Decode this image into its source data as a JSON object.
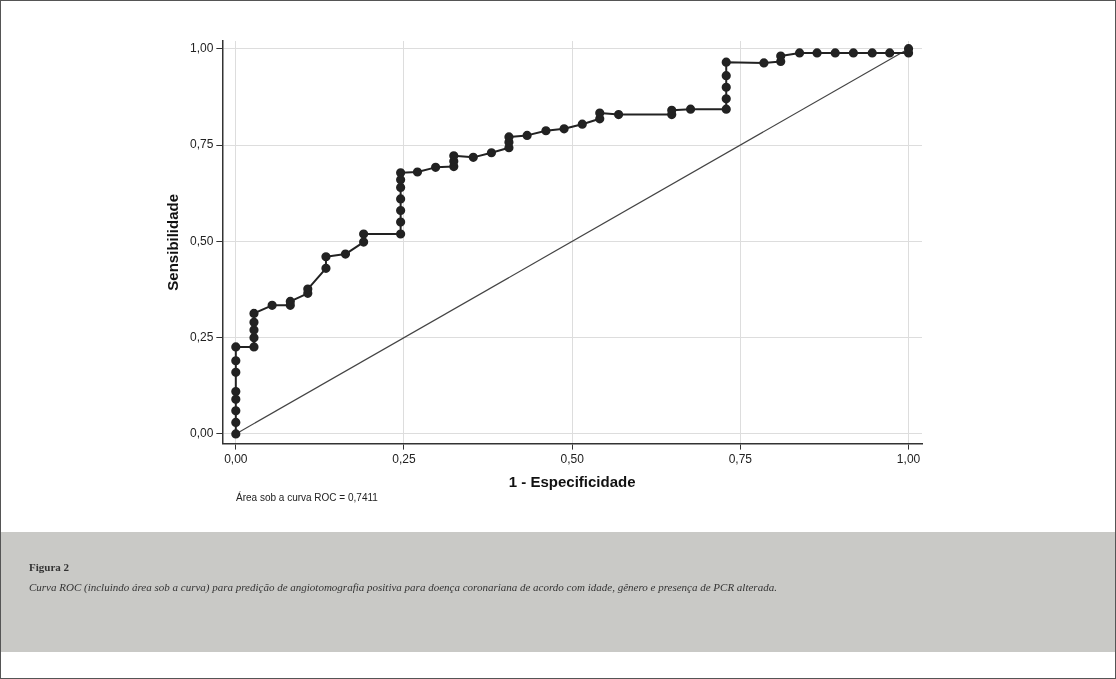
{
  "chart_data": {
    "type": "line",
    "xlabel": "1 - Especificidade",
    "ylabel": "Sensibilidade",
    "xlim": [
      -0.02,
      1.02
    ],
    "ylim": [
      -0.025,
      1.02
    ],
    "xticks": [
      {
        "value": 0,
        "label": "0,00"
      },
      {
        "value": 0.25,
        "label": "0,25"
      },
      {
        "value": 0.5,
        "label": "0,50"
      },
      {
        "value": 0.75,
        "label": "0,75"
      },
      {
        "value": 1,
        "label": "1,00"
      }
    ],
    "yticks": [
      {
        "value": 0,
        "label": "0,00"
      },
      {
        "value": 0.25,
        "label": "0,25"
      },
      {
        "value": 0.5,
        "label": "0,50"
      },
      {
        "value": 0.75,
        "label": "0,75"
      },
      {
        "value": 1,
        "label": "1,00"
      }
    ],
    "grid": true,
    "legend": false,
    "series": [
      {
        "marker": "circle",
        "color": "#222222",
        "x": [
          0,
          0,
          0,
          0,
          0,
          0,
          0,
          0,
          0.027,
          0.027,
          0.027,
          0.027,
          0.027,
          0.054,
          0.081,
          0.081,
          0.107,
          0.107,
          0.134,
          0.134,
          0.163,
          0.19,
          0.19,
          0.245,
          0.245,
          0.245,
          0.245,
          0.245,
          0.245,
          0.245,
          0.27,
          0.297,
          0.324,
          0.324,
          0.324,
          0.353,
          0.38,
          0.406,
          0.406,
          0.406,
          0.433,
          0.461,
          0.488,
          0.515,
          0.541,
          0.541,
          0.569,
          0.648,
          0.648,
          0.676,
          0.729,
          0.729,
          0.729,
          0.729,
          0.729,
          0.785,
          0.81,
          0.81,
          0.838,
          0.864,
          0.891,
          0.918,
          0.946,
          0.972,
          1,
          1
        ],
        "values": [
          0,
          0.03,
          0.06,
          0.09,
          0.11,
          0.16,
          0.19,
          0.226,
          0.226,
          0.25,
          0.27,
          0.29,
          0.313,
          0.334,
          0.334,
          0.344,
          0.365,
          0.376,
          0.43,
          0.46,
          0.467,
          0.498,
          0.519,
          0.519,
          0.55,
          0.58,
          0.61,
          0.64,
          0.66,
          0.678,
          0.68,
          0.692,
          0.694,
          0.708,
          0.722,
          0.718,
          0.73,
          0.743,
          0.757,
          0.771,
          0.775,
          0.787,
          0.792,
          0.804,
          0.818,
          0.833,
          0.829,
          0.829,
          0.84,
          0.843,
          0.843,
          0.87,
          0.9,
          0.93,
          0.965,
          0.963,
          0.967,
          0.981,
          0.989,
          0.989,
          0.989,
          0.989,
          0.989,
          0.989,
          0.989,
          1
        ]
      },
      {
        "marker": "none",
        "color": "#444444",
        "x": [
          0,
          1
        ],
        "values": [
          0,
          1
        ]
      }
    ],
    "annotations": [
      "Área sob a curva ROC = 0,7411",
      "Figura 2",
      "Curva ROC (incluindo área sob a curva) para predição de angiotomografia positiva para doença coronariana de acordo com idade, gênero e presença de PCR alterada."
    ]
  }
}
